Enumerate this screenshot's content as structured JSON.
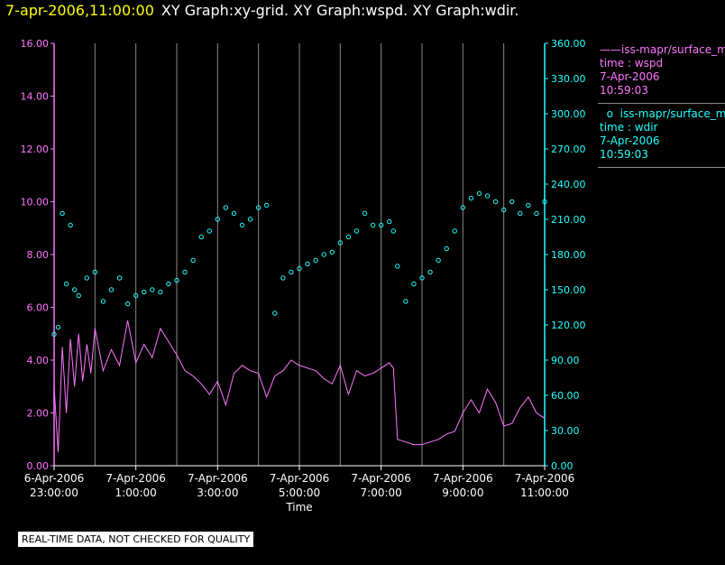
{
  "header": {
    "timestamp": "7-apr-2006,11:00:00",
    "title": "XY Graph:xy-grid.  XY Graph:wspd.  XY Graph:wdir."
  },
  "legend": [
    {
      "symbol": "line",
      "color": "#ff77ff",
      "lines": [
        "iss-mapr/surface_m",
        "time : wspd",
        "7-Apr-2006",
        "10:59:03"
      ]
    },
    {
      "symbol": "circle",
      "color": "#22ffff",
      "lines": [
        "iss-mapr/surface_m",
        "time : wdir",
        "7-Apr-2006",
        "10:59:03"
      ]
    }
  ],
  "footer_note": "REAL-TIME DATA, NOT CHECKED FOR QUALITY",
  "chart_data": {
    "type": "scatter",
    "title": "",
    "xlabel": "Time",
    "x_range_hours": [
      23.0,
      35.0
    ],
    "x_ticks": [
      {
        "date": "6-Apr-2006",
        "time": "23:00:00"
      },
      {
        "date": "7-Apr-2006",
        "time": "1:00:00"
      },
      {
        "date": "7-Apr-2006",
        "time": "3:00:00"
      },
      {
        "date": "7-Apr-2006",
        "time": "5:00:00"
      },
      {
        "date": "7-Apr-2006",
        "time": "7:00:00"
      },
      {
        "date": "7-Apr-2006",
        "time": "9:00:00"
      },
      {
        "date": "7-Apr-2006",
        "time": "11:00:00"
      }
    ],
    "grid": "vertical lines at every hour",
    "y_left": {
      "color": "#ff77ff",
      "range": [
        0,
        16
      ],
      "ticks": [
        "0.00",
        "2.00",
        "4.00",
        "6.00",
        "8.00",
        "10.00",
        "12.00",
        "14.00",
        "16.00"
      ]
    },
    "y_right": {
      "color": "#22ffff",
      "range": [
        0,
        360
      ],
      "ticks": [
        "0.00",
        "30.00",
        "60.00",
        "90.00",
        "120.00",
        "150.00",
        "180.00",
        "210.00",
        "240.00",
        "270.00",
        "300.00",
        "330.00",
        "360.00"
      ]
    },
    "series": [
      {
        "name": "iss-mapr/surface_m time : wspd",
        "axis": "left",
        "style": "line",
        "color": "#ff77ff",
        "points": [
          [
            23.0,
            3.0
          ],
          [
            23.1,
            0.5
          ],
          [
            23.2,
            4.5
          ],
          [
            23.3,
            2.0
          ],
          [
            23.4,
            4.8
          ],
          [
            23.5,
            3.0
          ],
          [
            23.6,
            5.0
          ],
          [
            23.7,
            3.2
          ],
          [
            23.8,
            4.6
          ],
          [
            23.9,
            3.5
          ],
          [
            24.0,
            5.2
          ],
          [
            24.2,
            3.6
          ],
          [
            24.4,
            4.4
          ],
          [
            24.6,
            3.8
          ],
          [
            24.8,
            5.5
          ],
          [
            25.0,
            3.9
          ],
          [
            25.2,
            4.6
          ],
          [
            25.4,
            4.1
          ],
          [
            25.6,
            5.2
          ],
          [
            25.8,
            4.7
          ],
          [
            26.0,
            4.2
          ],
          [
            26.2,
            3.6
          ],
          [
            26.4,
            3.4
          ],
          [
            26.6,
            3.1
          ],
          [
            26.8,
            2.7
          ],
          [
            27.0,
            3.2
          ],
          [
            27.2,
            2.3
          ],
          [
            27.4,
            3.5
          ],
          [
            27.6,
            3.8
          ],
          [
            27.8,
            3.6
          ],
          [
            28.0,
            3.5
          ],
          [
            28.2,
            2.6
          ],
          [
            28.4,
            3.4
          ],
          [
            28.6,
            3.6
          ],
          [
            28.8,
            4.0
          ],
          [
            29.0,
            3.8
          ],
          [
            29.2,
            3.7
          ],
          [
            29.4,
            3.6
          ],
          [
            29.6,
            3.3
          ],
          [
            29.8,
            3.1
          ],
          [
            30.0,
            3.8
          ],
          [
            30.2,
            2.7
          ],
          [
            30.4,
            3.6
          ],
          [
            30.6,
            3.4
          ],
          [
            30.8,
            3.5
          ],
          [
            31.0,
            3.7
          ],
          [
            31.2,
            3.9
          ],
          [
            31.3,
            3.7
          ],
          [
            31.4,
            1.0
          ],
          [
            31.6,
            0.9
          ],
          [
            31.8,
            0.8
          ],
          [
            32.0,
            0.8
          ],
          [
            32.2,
            0.9
          ],
          [
            32.4,
            1.0
          ],
          [
            32.6,
            1.2
          ],
          [
            32.8,
            1.3
          ],
          [
            33.0,
            2.0
          ],
          [
            33.2,
            2.5
          ],
          [
            33.4,
            2.0
          ],
          [
            33.6,
            2.9
          ],
          [
            33.8,
            2.4
          ],
          [
            34.0,
            1.5
          ],
          [
            34.2,
            1.6
          ],
          [
            34.4,
            2.2
          ],
          [
            34.6,
            2.6
          ],
          [
            34.8,
            2.0
          ],
          [
            35.0,
            1.8
          ]
        ]
      },
      {
        "name": "iss-mapr/surface_m time : wdir",
        "axis": "right",
        "style": "circle",
        "color": "#22ffff",
        "points": [
          [
            23.0,
            112
          ],
          [
            23.1,
            118
          ],
          [
            23.2,
            215
          ],
          [
            23.3,
            155
          ],
          [
            23.4,
            205
          ],
          [
            23.5,
            150
          ],
          [
            23.6,
            145
          ],
          [
            23.8,
            160
          ],
          [
            24.0,
            165
          ],
          [
            24.2,
            140
          ],
          [
            24.4,
            150
          ],
          [
            24.6,
            160
          ],
          [
            24.8,
            138
          ],
          [
            25.0,
            145
          ],
          [
            25.2,
            148
          ],
          [
            25.4,
            150
          ],
          [
            25.6,
            148
          ],
          [
            25.8,
            155
          ],
          [
            26.0,
            158
          ],
          [
            26.2,
            165
          ],
          [
            26.4,
            175
          ],
          [
            26.6,
            195
          ],
          [
            26.8,
            200
          ],
          [
            27.0,
            210
          ],
          [
            27.2,
            220
          ],
          [
            27.4,
            215
          ],
          [
            27.6,
            205
          ],
          [
            27.8,
            210
          ],
          [
            28.0,
            220
          ],
          [
            28.2,
            222
          ],
          [
            28.4,
            130
          ],
          [
            28.6,
            160
          ],
          [
            28.8,
            165
          ],
          [
            29.0,
            168
          ],
          [
            29.2,
            172
          ],
          [
            29.4,
            175
          ],
          [
            29.6,
            180
          ],
          [
            29.8,
            182
          ],
          [
            30.0,
            190
          ],
          [
            30.2,
            195
          ],
          [
            30.4,
            200
          ],
          [
            30.6,
            215
          ],
          [
            30.8,
            205
          ],
          [
            31.0,
            205
          ],
          [
            31.2,
            208
          ],
          [
            31.3,
            200
          ],
          [
            31.4,
            170
          ],
          [
            31.6,
            140
          ],
          [
            31.8,
            155
          ],
          [
            32.0,
            160
          ],
          [
            32.2,
            165
          ],
          [
            32.4,
            175
          ],
          [
            32.6,
            185
          ],
          [
            32.8,
            200
          ],
          [
            33.0,
            220
          ],
          [
            33.2,
            228
          ],
          [
            33.4,
            232
          ],
          [
            33.6,
            230
          ],
          [
            33.8,
            225
          ],
          [
            34.0,
            218
          ],
          [
            34.2,
            225
          ],
          [
            34.4,
            215
          ],
          [
            34.6,
            222
          ],
          [
            34.8,
            215
          ],
          [
            35.0,
            225
          ]
        ]
      }
    ]
  }
}
